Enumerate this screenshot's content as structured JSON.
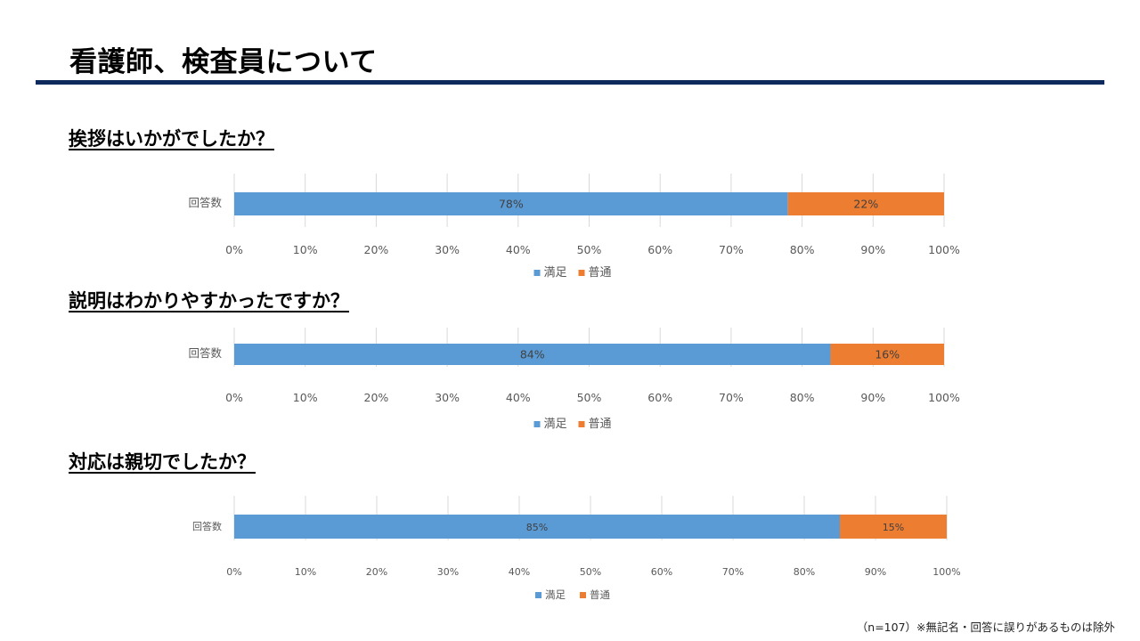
{
  "page": {
    "title": "看護師、検査員について",
    "footnote": "（n=107）※無記名・回答に誤りがあるものは除外"
  },
  "colors": {
    "satisfied": "#5b9bd5",
    "normal": "#ed7d31",
    "grid": "#d9d9d9",
    "label": "#595959",
    "rule": "#0e2a5c"
  },
  "chart_data": [
    {
      "type": "bar",
      "stacked": true,
      "orientation": "horizontal",
      "title": "挨拶はいかがでしたか？",
      "categories": [
        "回答数"
      ],
      "series": [
        {
          "name": "満足",
          "values": [
            78
          ],
          "label": "78%"
        },
        {
          "name": "普通",
          "values": [
            22
          ],
          "label": "22%"
        }
      ],
      "xlim": [
        0,
        100
      ],
      "ticks": [
        "0%",
        "10%",
        "20%",
        "30%",
        "40%",
        "50%",
        "60%",
        "70%",
        "80%",
        "90%",
        "100%"
      ],
      "grid": true,
      "legend": "bottom"
    },
    {
      "type": "bar",
      "stacked": true,
      "orientation": "horizontal",
      "title": "説明はわかりやすかったですか？",
      "categories": [
        "回答数"
      ],
      "series": [
        {
          "name": "満足",
          "values": [
            84
          ],
          "label": "84%"
        },
        {
          "name": "普通",
          "values": [
            16
          ],
          "label": "16%"
        }
      ],
      "xlim": [
        0,
        100
      ],
      "ticks": [
        "0%",
        "10%",
        "20%",
        "30%",
        "40%",
        "50%",
        "60%",
        "70%",
        "80%",
        "90%",
        "100%"
      ],
      "grid": true,
      "legend": "bottom"
    },
    {
      "type": "bar",
      "stacked": true,
      "orientation": "horizontal",
      "title": "対応は親切でしたか？",
      "categories": [
        "回答数"
      ],
      "series": [
        {
          "name": "満足",
          "values": [
            85
          ],
          "label": "85%"
        },
        {
          "name": "普通",
          "values": [
            15
          ],
          "label": "15%"
        }
      ],
      "xlim": [
        0,
        100
      ],
      "ticks": [
        "0%",
        "10%",
        "20%",
        "30%",
        "40%",
        "50%",
        "60%",
        "70%",
        "80%",
        "90%",
        "100%"
      ],
      "grid": true,
      "legend": "bottom"
    }
  ]
}
